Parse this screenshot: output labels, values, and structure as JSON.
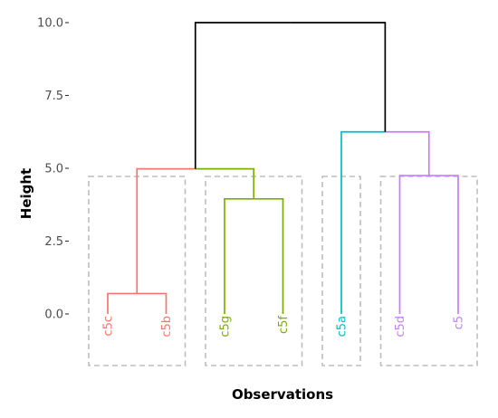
{
  "chart_data": {
    "type": "dendrogram",
    "title": "",
    "xlabel": "Observations",
    "ylabel": "Height",
    "ylim": [
      -1.8,
      10.2
    ],
    "y_ticks": [
      {
        "value": 0,
        "label": "0.0"
      },
      {
        "value": 2.5,
        "label": "2.5"
      },
      {
        "value": 5,
        "label": "5.0"
      },
      {
        "value": 7.5,
        "label": "7.5"
      },
      {
        "value": 10,
        "label": "10.0"
      }
    ],
    "leaves": [
      {
        "label": "c5c",
        "cluster": 1
      },
      {
        "label": "c5b",
        "cluster": 1
      },
      {
        "label": "c5g",
        "cluster": 2
      },
      {
        "label": "c5f",
        "cluster": 2
      },
      {
        "label": "c5a",
        "cluster": 3
      },
      {
        "label": "c5d",
        "cluster": 4
      },
      {
        "label": "c5",
        "cluster": 4
      }
    ],
    "merges": [
      {
        "id": "m1",
        "left": "c5c",
        "right": "c5b",
        "height": 0.7,
        "cluster": 1
      },
      {
        "id": "m2",
        "left": "c5g",
        "right": "c5f",
        "height": 3.95,
        "cluster": 2
      },
      {
        "id": "m3",
        "left": "c5d",
        "right": "c5",
        "height": 4.75,
        "cluster": 4
      },
      {
        "id": "m4",
        "left": "m1",
        "right": "m2",
        "height": 4.98,
        "cluster": null
      },
      {
        "id": "m5",
        "left": "c5a",
        "right": "m3",
        "height": 6.25,
        "cluster": null
      },
      {
        "id": "m6",
        "left": "m4",
        "right": "m5",
        "height": 10.0,
        "cluster": null
      }
    ],
    "cluster_colors": {
      "1": "#F8766D",
      "2": "#7CAE00",
      "3": "#00BFC4",
      "4": "#C77CFF"
    },
    "root_color": "#000000",
    "cluster_boxes": true,
    "cluster_box_color": "#BDBDBD",
    "grid": false
  }
}
